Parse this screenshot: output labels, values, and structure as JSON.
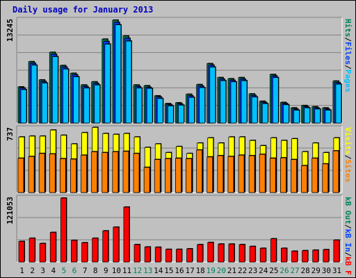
{
  "title": "Daily usage for January 2013",
  "colors": {
    "background": "#c0c0c0",
    "panel_bg": "#c0c0c0",
    "title": "#0000c0",
    "hits": "#00805c",
    "files": "#0040ff",
    "pages": "#00c0ff",
    "visits": "#ffff00",
    "sites": "#ff8000",
    "kbin": "#ff0000",
    "weekday_label": "#000000",
    "weekend_label": "#00805c"
  },
  "right_labels": {
    "top": [
      {
        "text": "Hits",
        "color": "#00805c"
      },
      {
        "text": "/",
        "color": "#000000"
      },
      {
        "text": "Files",
        "color": "#0040ff"
      },
      {
        "text": "/",
        "color": "#000000"
      },
      {
        "text": "Pages",
        "color": "#00c0ff"
      }
    ],
    "middle": [
      {
        "text": "Visits",
        "color": "#ffff00"
      },
      {
        "text": "/",
        "color": "#000000"
      },
      {
        "text": "Sites",
        "color": "#ff8000"
      }
    ],
    "bottom": [
      {
        "text": "kB Out",
        "color": "#00805c"
      },
      {
        "text": "/",
        "color": "#000000"
      },
      {
        "text": "kB In",
        "color": "#0040ff"
      },
      {
        "text": "/",
        "color": "#000000"
      },
      {
        "text": "kB F",
        "color": "#ff0000"
      }
    ]
  },
  "chart_data": [
    {
      "type": "bar",
      "panel": "hits-files-pages",
      "max_label": "13245",
      "ymax": 13245,
      "categories": [
        "1",
        "2",
        "3",
        "4",
        "5",
        "6",
        "7",
        "8",
        "9",
        "10",
        "11",
        "12",
        "13",
        "14",
        "15",
        "16",
        "17",
        "18",
        "19",
        "20",
        "21",
        "22",
        "23",
        "24",
        "25",
        "26",
        "27",
        "28",
        "29",
        "30",
        "31"
      ],
      "weekend_days": [
        "5",
        "6",
        "12",
        "13",
        "19",
        "20",
        "26",
        "27"
      ],
      "series": [
        {
          "name": "Hits",
          "values": [
            4650,
            7900,
            5550,
            9100,
            7400,
            6400,
            4900,
            5300,
            10800,
            13245,
            11200,
            4900,
            4800,
            3500,
            2500,
            2600,
            3700,
            4950,
            7650,
            5850,
            5700,
            5850,
            3750,
            2800,
            6250,
            2650,
            1950,
            2250,
            2100,
            1950,
            5400
          ]
        },
        {
          "name": "Files",
          "values": [
            4500,
            7700,
            5350,
            8850,
            7200,
            6200,
            4700,
            5100,
            10500,
            12950,
            10900,
            4700,
            4600,
            3350,
            2350,
            2450,
            3500,
            4750,
            7450,
            5650,
            5500,
            5650,
            3550,
            2650,
            6050,
            2500,
            1800,
            2100,
            1950,
            1800,
            5200
          ]
        },
        {
          "name": "Pages",
          "values": [
            4300,
            7450,
            5150,
            8550,
            6950,
            5950,
            4500,
            4900,
            10150,
            12650,
            10550,
            4500,
            4450,
            3150,
            2200,
            2300,
            3300,
            4550,
            7200,
            5450,
            5300,
            5450,
            3350,
            2500,
            5850,
            2350,
            1650,
            1950,
            1800,
            1650,
            5000
          ]
        }
      ]
    },
    {
      "type": "bar",
      "panel": "visits-sites",
      "max_label": "737",
      "ymax": 737,
      "categories": [
        "1",
        "2",
        "3",
        "4",
        "5",
        "6",
        "7",
        "8",
        "9",
        "10",
        "11",
        "12",
        "13",
        "14",
        "15",
        "16",
        "17",
        "18",
        "19",
        "20",
        "21",
        "22",
        "23",
        "24",
        "25",
        "26",
        "27",
        "28",
        "29",
        "30",
        "31"
      ],
      "series": [
        {
          "name": "Visits",
          "values": [
            640,
            650,
            650,
            720,
            660,
            560,
            690,
            750,
            680,
            670,
            680,
            640,
            520,
            560,
            460,
            530,
            450,
            570,
            630,
            570,
            640,
            640,
            600,
            540,
            630,
            600,
            620,
            470,
            570,
            460,
            630
          ]
        },
        {
          "name": "Sites",
          "values": [
            395,
            415,
            450,
            445,
            390,
            385,
            430,
            470,
            460,
            470,
            475,
            450,
            290,
            380,
            390,
            395,
            390,
            490,
            410,
            425,
            415,
            430,
            425,
            440,
            395,
            400,
            380,
            310,
            395,
            330,
            480
          ]
        }
      ]
    },
    {
      "type": "bar",
      "panel": "kbytes",
      "max_label": "121053",
      "ymax": 121053,
      "categories": [
        "1",
        "2",
        "3",
        "4",
        "5",
        "6",
        "7",
        "8",
        "9",
        "10",
        "11",
        "12",
        "13",
        "14",
        "15",
        "16",
        "17",
        "18",
        "19",
        "20",
        "21",
        "22",
        "23",
        "24",
        "25",
        "26",
        "27",
        "28",
        "29",
        "30",
        "31"
      ],
      "series": [
        {
          "name": "kB F",
          "values": [
            39000,
            45000,
            35000,
            56000,
            121053,
            41000,
            36500,
            45000,
            59000,
            66000,
            104000,
            33000,
            28500,
            28000,
            24000,
            24000,
            25000,
            33000,
            37000,
            34000,
            34000,
            33000,
            29500,
            26000,
            44000,
            26000,
            20500,
            21500,
            22500,
            23500,
            41500
          ]
        }
      ]
    }
  ]
}
